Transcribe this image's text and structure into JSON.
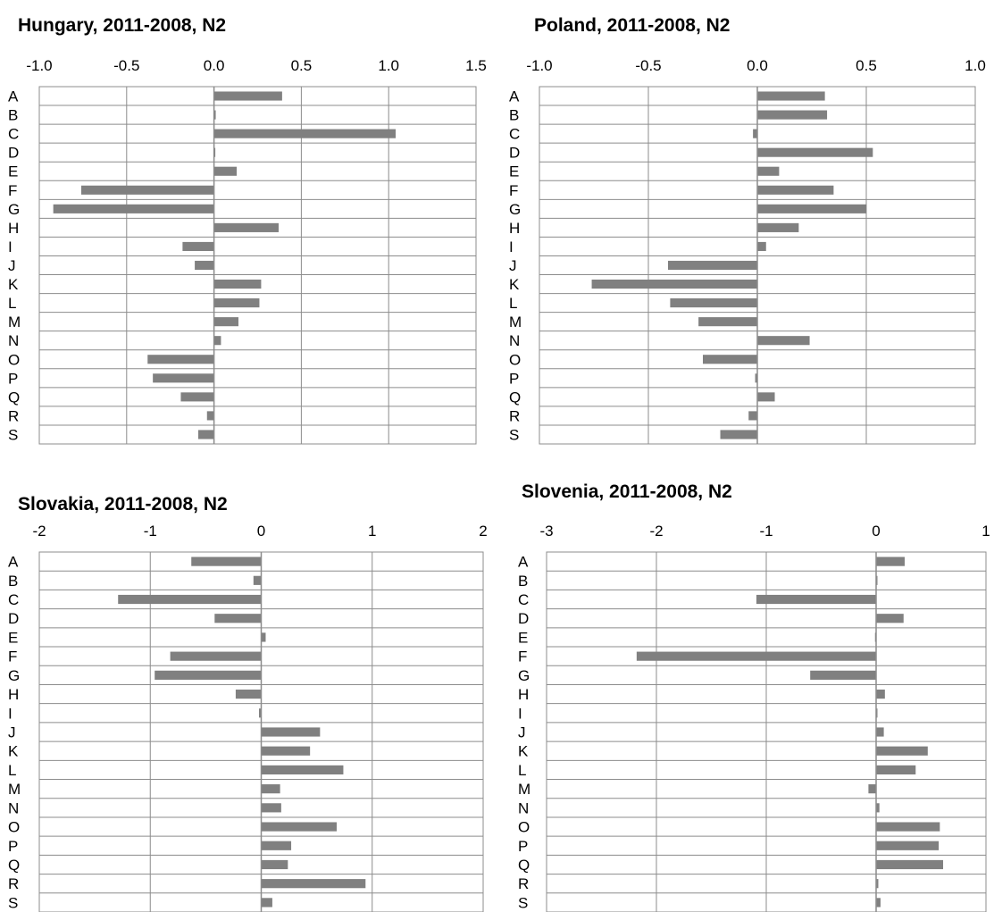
{
  "chart_data": [
    {
      "type": "bar",
      "orientation": "horizontal",
      "title": "Hungary, 2011-2008, N2",
      "xlabel": "",
      "ylabel": "",
      "categories": [
        "A",
        "B",
        "C",
        "D",
        "E",
        "F",
        "G",
        "H",
        "I",
        "J",
        "K",
        "L",
        "M",
        "N",
        "O",
        "P",
        "Q",
        "R",
        "S"
      ],
      "values": [
        0.39,
        0.01,
        1.04,
        0.0,
        0.13,
        -0.76,
        -0.92,
        0.37,
        -0.18,
        -0.11,
        0.27,
        0.26,
        0.14,
        0.04,
        -0.38,
        -0.35,
        -0.19,
        -0.04,
        -0.09
      ],
      "xlim": [
        -1.0,
        1.5
      ],
      "xticks": [
        -1.0,
        -0.5,
        0.0,
        0.5,
        1.0,
        1.5
      ],
      "xtick_labels": [
        "-1.0",
        "-0.5",
        "0.0",
        "0.5",
        "1.0",
        "1.5"
      ],
      "grid": true,
      "axis_position": "top",
      "bar_color": "#808080"
    },
    {
      "type": "bar",
      "orientation": "horizontal",
      "title": "Poland, 2011-2008, N2",
      "xlabel": "",
      "ylabel": "",
      "categories": [
        "A",
        "B",
        "C",
        "D",
        "E",
        "F",
        "G",
        "H",
        "I",
        "J",
        "K",
        "L",
        "M",
        "N",
        "O",
        "P",
        "Q",
        "R",
        "S"
      ],
      "values": [
        0.31,
        0.32,
        -0.02,
        0.53,
        0.1,
        0.35,
        0.5,
        0.19,
        0.04,
        -0.41,
        -0.76,
        -0.4,
        -0.27,
        0.24,
        -0.25,
        -0.01,
        0.08,
        -0.04,
        -0.17
      ],
      "xlim": [
        -1.0,
        1.0
      ],
      "xticks": [
        -1.0,
        -0.5,
        0.0,
        0.5,
        1.0
      ],
      "xtick_labels": [
        "-1.0",
        "-0.5",
        "0.0",
        "0.5",
        "1.0"
      ],
      "grid": true,
      "axis_position": "top",
      "bar_color": "#808080"
    },
    {
      "type": "bar",
      "orientation": "horizontal",
      "title": "Slovakia, 2011-2008, N2",
      "xlabel": "",
      "ylabel": "",
      "categories": [
        "A",
        "B",
        "C",
        "D",
        "E",
        "F",
        "G",
        "H",
        "I",
        "J",
        "K",
        "L",
        "M",
        "N",
        "O",
        "P",
        "Q",
        "R",
        "S"
      ],
      "values": [
        -0.63,
        -0.07,
        -1.29,
        -0.42,
        0.04,
        -0.82,
        -0.96,
        -0.23,
        -0.02,
        0.53,
        0.44,
        0.74,
        0.17,
        0.18,
        0.68,
        0.27,
        0.24,
        0.94,
        0.1
      ],
      "xlim": [
        -2,
        2
      ],
      "xticks": [
        -2,
        -1,
        0,
        1,
        2
      ],
      "xtick_labels": [
        "-2",
        "-1",
        "0",
        "1",
        "2"
      ],
      "grid": true,
      "axis_position": "top",
      "bar_color": "#808080"
    },
    {
      "type": "bar",
      "orientation": "horizontal",
      "title": "Slovenia, 2011-2008, N2",
      "xlabel": "",
      "ylabel": "",
      "categories": [
        "A",
        "B",
        "C",
        "D",
        "E",
        "F",
        "G",
        "H",
        "I",
        "J",
        "K",
        "L",
        "M",
        "N",
        "O",
        "P",
        "Q",
        "R",
        "S"
      ],
      "values": [
        0.26,
        0.01,
        -1.09,
        0.25,
        -0.01,
        -2.18,
        -0.6,
        0.08,
        0.0,
        0.07,
        0.47,
        0.36,
        -0.07,
        0.03,
        0.58,
        0.57,
        0.61,
        0.02,
        0.04
      ],
      "xlim": [
        -3,
        1
      ],
      "xticks": [
        -3,
        -2,
        -1,
        0,
        1
      ],
      "xtick_labels": [
        "-3",
        "-2",
        "-1",
        "0",
        "1"
      ],
      "grid": true,
      "axis_position": "top",
      "bar_color": "#808080"
    }
  ]
}
